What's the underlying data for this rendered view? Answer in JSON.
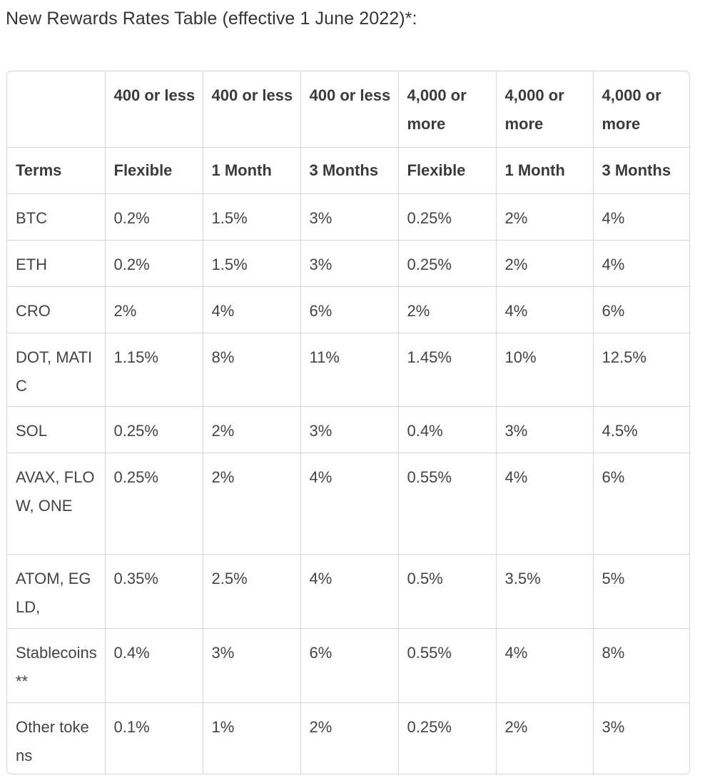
{
  "heading": "New Rewards Rates Table (effective 1 June 2022)*:",
  "table": {
    "tier_row": [
      "",
      "400 or less",
      "400 or less",
      "400 or less",
      "4,000 or more",
      "4,000 or more",
      "4,000 or more"
    ],
    "terms_row": [
      "Terms",
      "Flexible",
      "1 Month",
      "3 Months",
      "Flexible",
      "1 Month",
      "3 Months"
    ],
    "rows": [
      [
        "BTC",
        "0.2%",
        "1.5%",
        "3%",
        "0.25%",
        "2%",
        "4%"
      ],
      [
        "ETH",
        "0.2%",
        "1.5%",
        "3%",
        "0.25%",
        "2%",
        "4%"
      ],
      [
        "CRO",
        "2%",
        "4%",
        "6%",
        "2%",
        "4%",
        "6%"
      ],
      [
        "DOT, MATIC",
        "1.15%",
        "8%",
        "11%",
        "1.45%",
        "10%",
        "12.5%"
      ],
      [
        "SOL",
        "0.25%",
        "2%",
        "3%",
        "0.4%",
        "3%",
        "4.5%"
      ],
      [
        "AVAX, FLOW, ONE",
        "0.25%",
        "2%",
        "4%",
        "0.55%",
        "4%",
        "6%"
      ],
      [
        "ATOM, EGLD,",
        "0.35%",
        "2.5%",
        "4%",
        "0.5%",
        "3.5%",
        "5%"
      ],
      [
        "Stablecoins**",
        "0.4%",
        "3%",
        "6%",
        "0.55%",
        "4%",
        "8%"
      ],
      [
        "Other tokens",
        "0.1%",
        "1%",
        "2%",
        "0.25%",
        "2%",
        "3%"
      ]
    ]
  }
}
